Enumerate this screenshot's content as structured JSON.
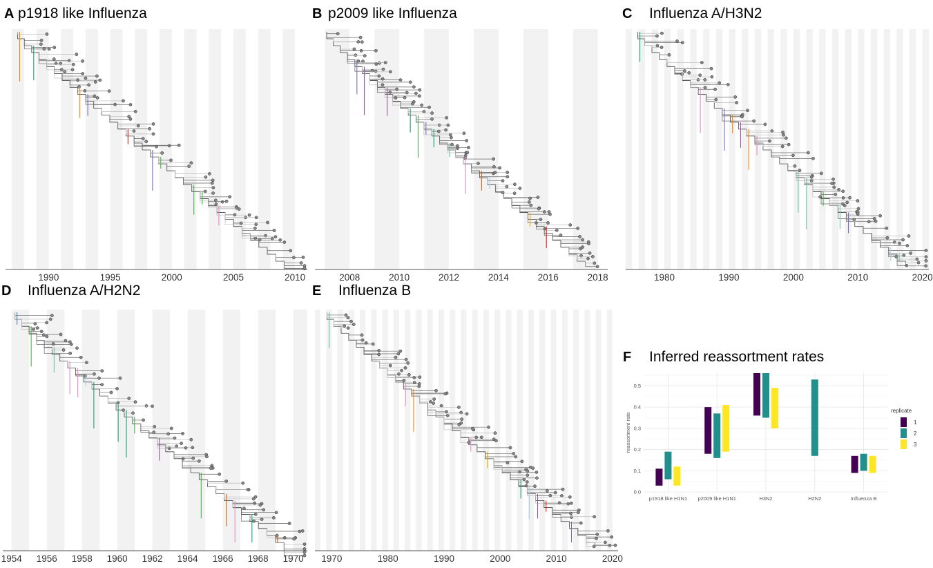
{
  "panels": [
    {
      "letter": "A",
      "title": "p1918 like Influenza",
      "ticks": [
        1990,
        1995,
        2000,
        2005,
        2010
      ],
      "x_range": [
        1986.5,
        2011
      ]
    },
    {
      "letter": "B",
      "title": "p2009 like Influenza",
      "ticks": [
        2008,
        2010,
        2012,
        2014,
        2016,
        2018
      ],
      "x_range": [
        2006.6,
        2018.4
      ]
    },
    {
      "letter": "C",
      "title": "Influenza A/H3N2",
      "ticks": [
        1980,
        1990,
        2000,
        2010,
        2020
      ],
      "x_range": [
        1974,
        2021
      ]
    },
    {
      "letter": "D",
      "title": "Influenza A/H2N2",
      "ticks": [
        1954,
        1956,
        1958,
        1960,
        1962,
        1964,
        1966,
        1968,
        1970
      ],
      "x_range": [
        1953.5,
        1970.8
      ]
    },
    {
      "letter": "E",
      "title": "Influenza B",
      "ticks": [
        1970,
        1980,
        1990,
        2000,
        2010,
        2020
      ],
      "x_range": [
        1967,
        2021
      ]
    }
  ],
  "panel_f": {
    "letter": "F",
    "title": "Inferred reassortment rates"
  },
  "chart_data": {
    "type": "bar",
    "title": "Inferred reassortment rates",
    "ylabel": "reassortment rate",
    "categories": [
      "p1918 like H1N1",
      "p2009 like H1N1",
      "H3N2",
      "H2N2",
      "Influenza B"
    ],
    "yticks": [
      "0.0",
      "0.1",
      "0.2",
      "0.3",
      "0.4",
      "0.5"
    ],
    "ylim": [
      0,
      0.56
    ],
    "legend_title": "replicate",
    "legend_position": "right",
    "series": [
      {
        "name": "1",
        "color": "#440154",
        "intervals": [
          [
            0.03,
            0.11
          ],
          [
            0.18,
            0.4
          ],
          [
            0.36,
            0.56
          ],
          null,
          [
            0.09,
            0.17
          ]
        ]
      },
      {
        "name": "2",
        "color": "#21908C",
        "intervals": [
          [
            0.06,
            0.19
          ],
          [
            0.16,
            0.37
          ],
          [
            0.35,
            0.56
          ],
          [
            0.17,
            0.53
          ],
          [
            0.1,
            0.18
          ]
        ]
      },
      {
        "name": "3",
        "color": "#FDE725",
        "intervals": [
          [
            0.03,
            0.12
          ],
          [
            0.19,
            0.41
          ],
          [
            0.3,
            0.49
          ],
          null,
          [
            0.09,
            0.17
          ]
        ]
      }
    ]
  }
}
